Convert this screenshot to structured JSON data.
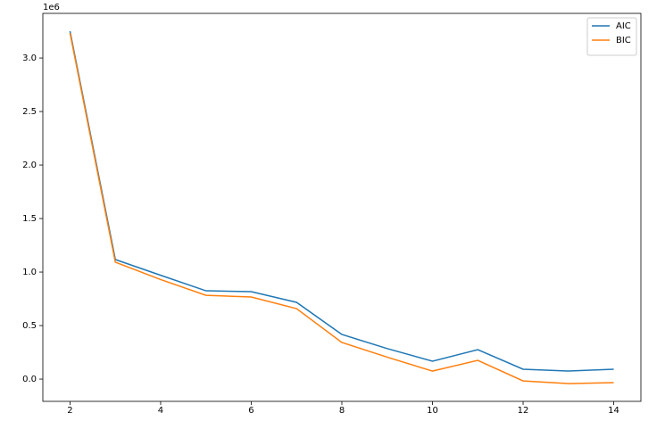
{
  "chart_data": {
    "type": "line",
    "y_offset_label": "1e6",
    "x": [
      2,
      3,
      4,
      5,
      6,
      7,
      8,
      9,
      10,
      11,
      12,
      13,
      14
    ],
    "series": [
      {
        "name": "AIC",
        "color": "#1f77b4",
        "values": [
          3.25,
          1.117,
          0.97,
          0.825,
          0.817,
          0.717,
          0.417,
          0.285,
          0.167,
          0.275,
          0.092,
          0.075,
          0.092
        ]
      },
      {
        "name": "BIC",
        "color": "#ff7f0e",
        "values": [
          3.233,
          1.092,
          0.93,
          0.783,
          0.767,
          0.658,
          0.342,
          0.205,
          0.075,
          0.175,
          -0.017,
          -0.042,
          -0.033
        ]
      }
    ],
    "xlim": [
      1.4,
      14.6
    ],
    "ylim": [
      -0.208,
      3.417
    ],
    "xticks": [
      2,
      4,
      6,
      8,
      10,
      12,
      14
    ],
    "yticks": [
      {
        "value": 0,
        "label": "0.0"
      },
      0.5,
      {
        "value": 1,
        "label": "1.0"
      },
      1.5,
      {
        "value": 2,
        "label": "2.0"
      },
      2.5,
      {
        "value": 3,
        "label": "3.0"
      }
    ],
    "legend": "upper-right"
  }
}
